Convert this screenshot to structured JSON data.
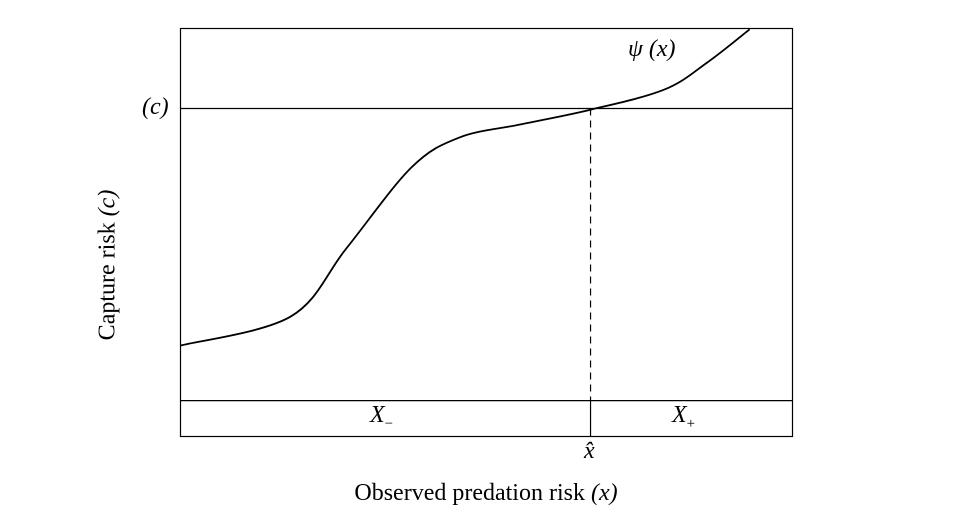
{
  "chart_data": {
    "type": "line",
    "title": "",
    "xlabel_text": "Observed predation risk",
    "xlabel_var": "(x)",
    "ylabel_text": "Capture risk",
    "ylabel_var": "(c)",
    "xlim": [
      0,
      100
    ],
    "ylim": [
      0,
      100
    ],
    "grid": false,
    "series": [
      {
        "name": "ψ (x)",
        "x": [
          0,
          18,
          27.1,
          37.7,
          45.6,
          55.6,
          67,
          79,
          86.1,
          93
        ],
        "y": [
          22.3,
          29.4,
          46.1,
          65.9,
          73.3,
          76.5,
          80.1,
          85.0,
          91.7,
          99.8
        ]
      }
    ],
    "reference_lines": {
      "c_level": 80.4,
      "c_label": "(c)",
      "x_hat": 67,
      "x_hat_label": "x̂",
      "band_top": 8.8
    },
    "regions": [
      {
        "label": "X",
        "sub": "−"
      },
      {
        "label": "X",
        "sub": "+"
      }
    ]
  }
}
